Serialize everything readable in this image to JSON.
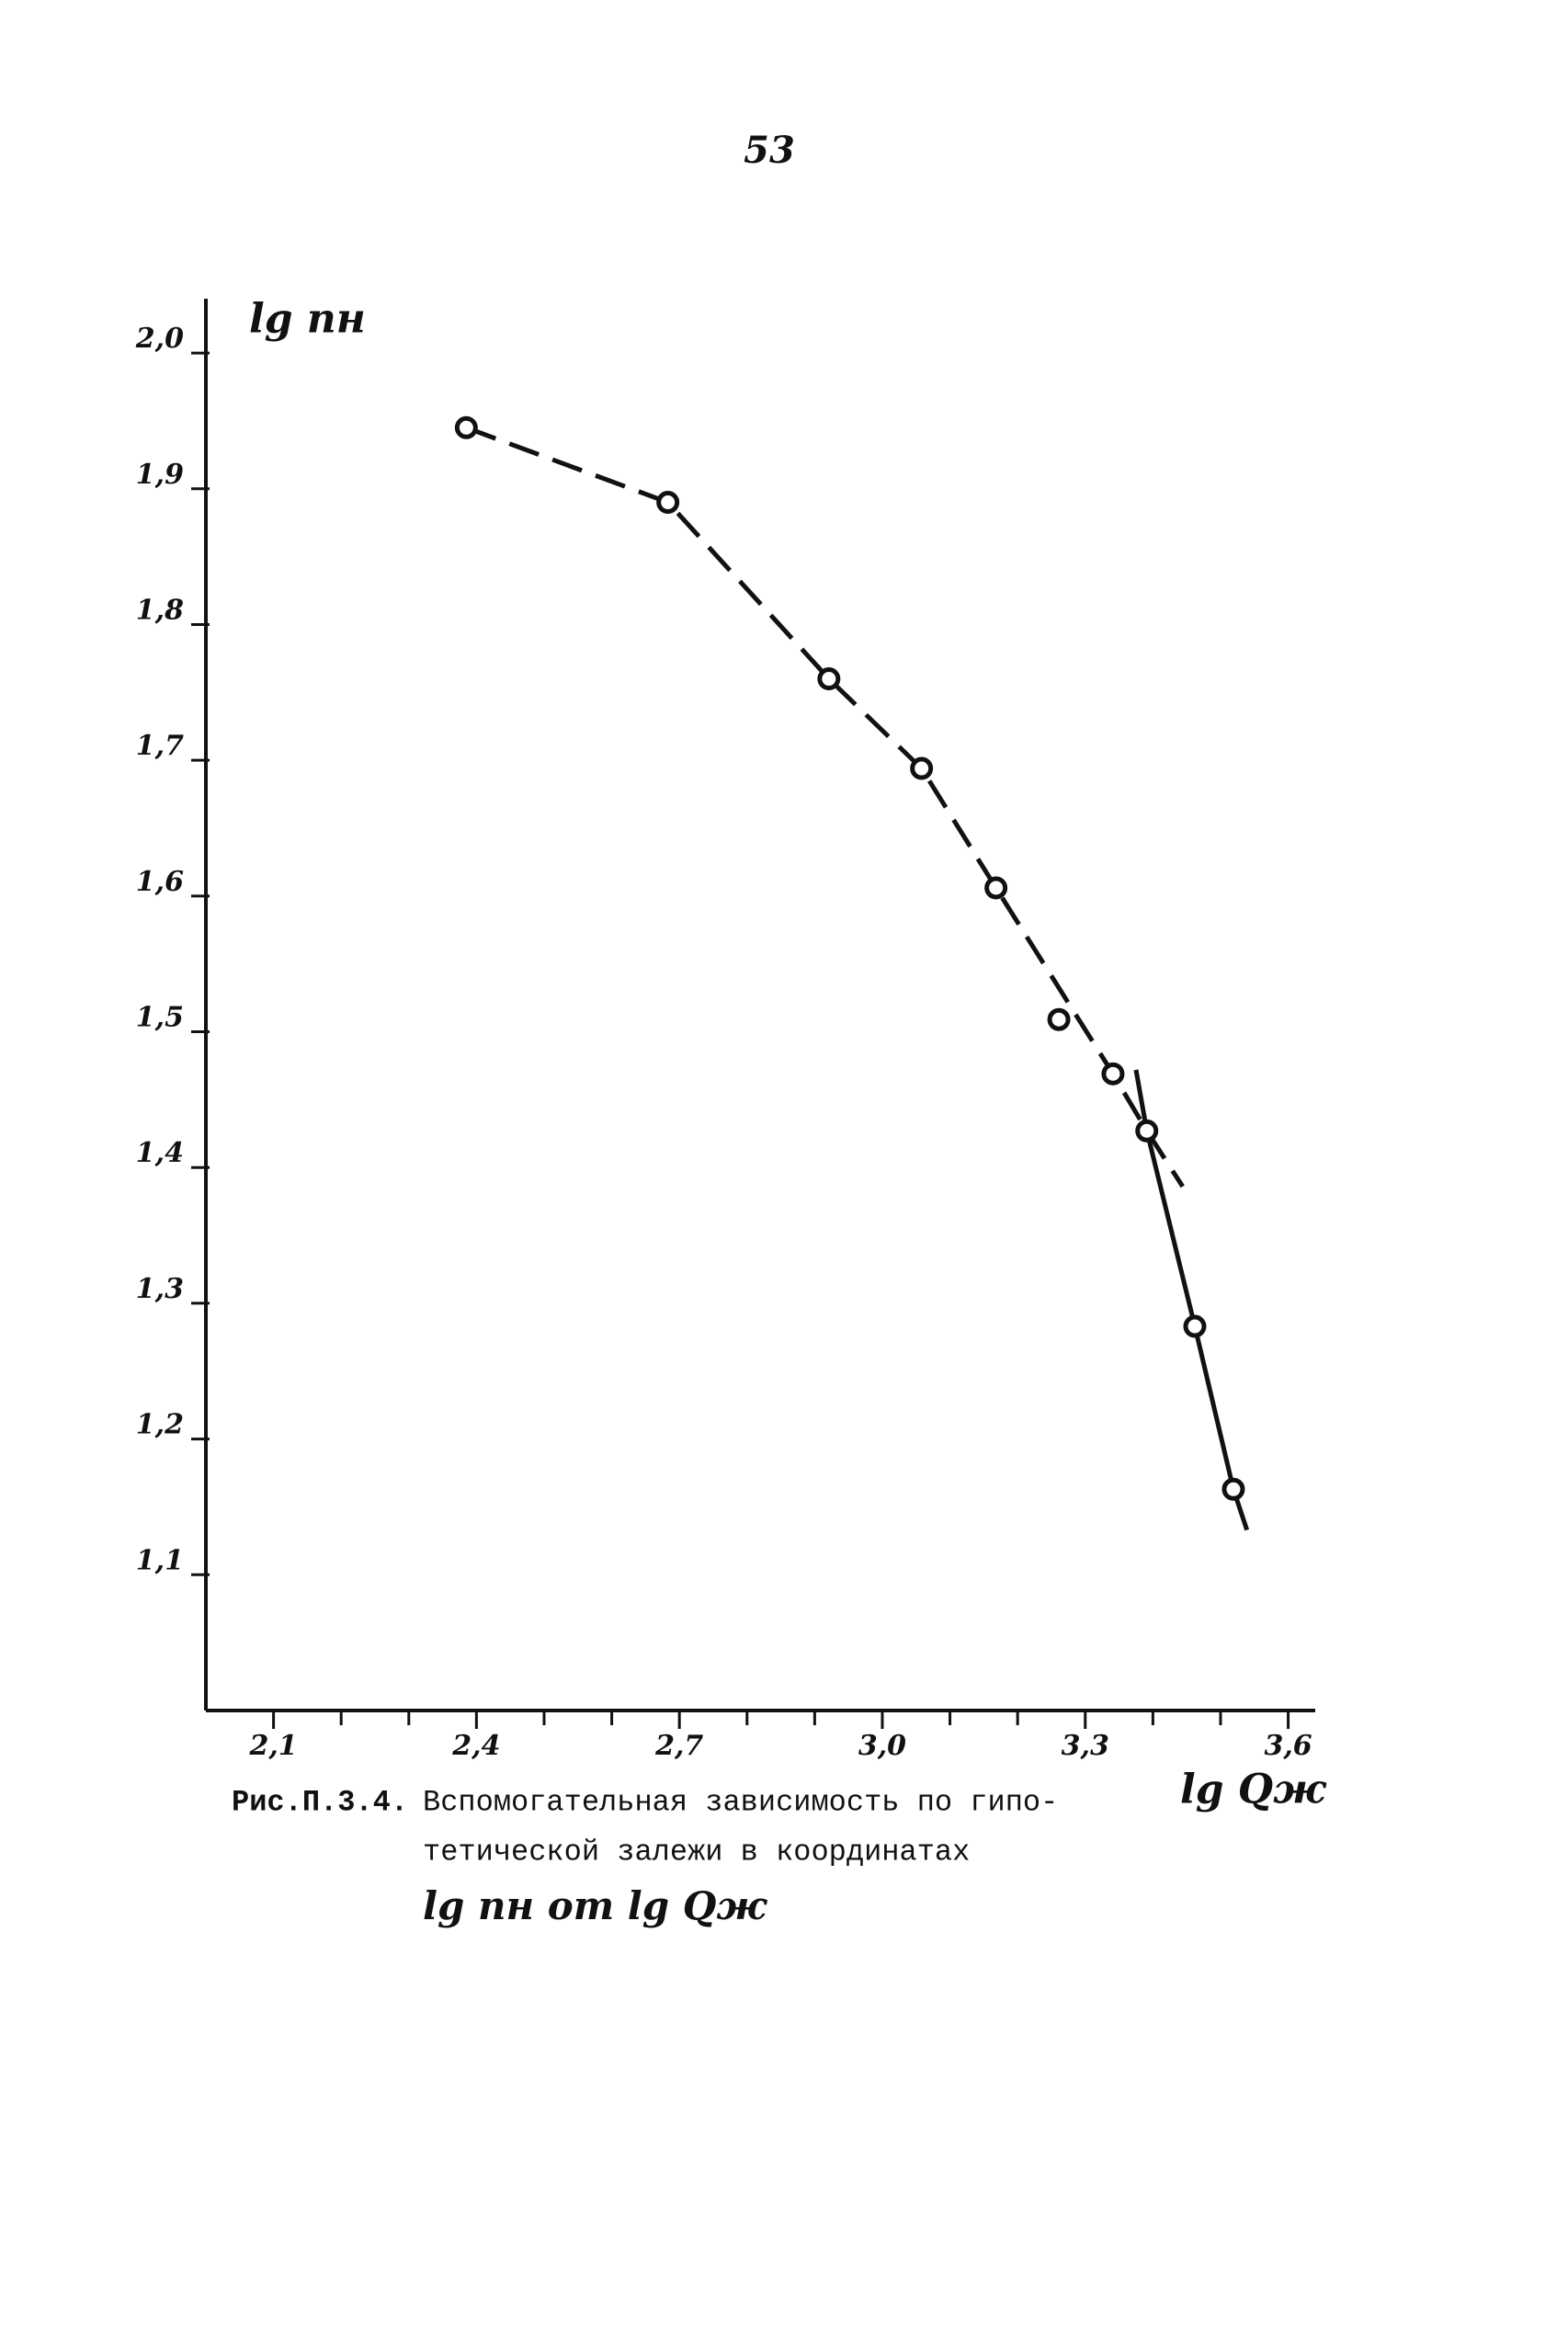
{
  "page_number": "53",
  "chart_data": {
    "type": "line",
    "ylabel": "lg nн",
    "xlabel": "lg Qж",
    "xlim": [
      2.0,
      3.64
    ],
    "ylim": [
      1.0,
      2.04
    ],
    "xticks": [
      {
        "value": 2.1,
        "label": "2,1"
      },
      {
        "value": 2.4,
        "label": "2,4"
      },
      {
        "value": 2.7,
        "label": "2,7"
      },
      {
        "value": 3.0,
        "label": "3,0"
      },
      {
        "value": 3.3,
        "label": "3,3"
      },
      {
        "value": 3.6,
        "label": "3,6"
      }
    ],
    "xminorticks": [
      2.2,
      2.3,
      2.5,
      2.6,
      2.8,
      2.9,
      3.1,
      3.2,
      3.4,
      3.5
    ],
    "yticks": [
      {
        "value": 1.1,
        "label": "1,1"
      },
      {
        "value": 1.2,
        "label": "1,2"
      },
      {
        "value": 1.3,
        "label": "1,3"
      },
      {
        "value": 1.4,
        "label": "1,4"
      },
      {
        "value": 1.5,
        "label": "1,5"
      },
      {
        "value": 1.6,
        "label": "1,6"
      },
      {
        "value": 1.7,
        "label": "1,7"
      },
      {
        "value": 1.8,
        "label": "1,8"
      },
      {
        "value": 1.9,
        "label": "1,9"
      },
      {
        "value": 2.0,
        "label": "2,0"
      }
    ],
    "series": [
      {
        "color": "#111111",
        "style": "markers",
        "x": [
          2.385,
          2.683,
          2.921,
          3.058,
          3.168,
          3.261,
          3.341,
          3.391,
          3.462,
          3.519
        ],
        "values": [
          1.945,
          1.89,
          1.76,
          1.694,
          1.606,
          1.509,
          1.469,
          1.427,
          1.283,
          1.163
        ]
      },
      {
        "color": "#111111",
        "style": "dashed",
        "x": [
          2.385,
          2.683,
          2.921,
          3.058,
          3.168,
          3.341,
          3.391,
          3.444
        ],
        "values": [
          1.945,
          1.89,
          1.76,
          1.694,
          1.606,
          1.469,
          1.427,
          1.386
        ]
      },
      {
        "color": "#111111",
        "style": "solid",
        "x": [
          3.375,
          3.391,
          3.462,
          3.519,
          3.539
        ],
        "values": [
          1.472,
          1.427,
          1.283,
          1.163,
          1.133
        ]
      }
    ]
  },
  "caption": {
    "label": "Рис.П.3.4.",
    "lines": [
      "Вспомогательная зависимость по гипо-",
      "тетической залежи в координатах",
      "lg nн от lg Qж"
    ]
  }
}
